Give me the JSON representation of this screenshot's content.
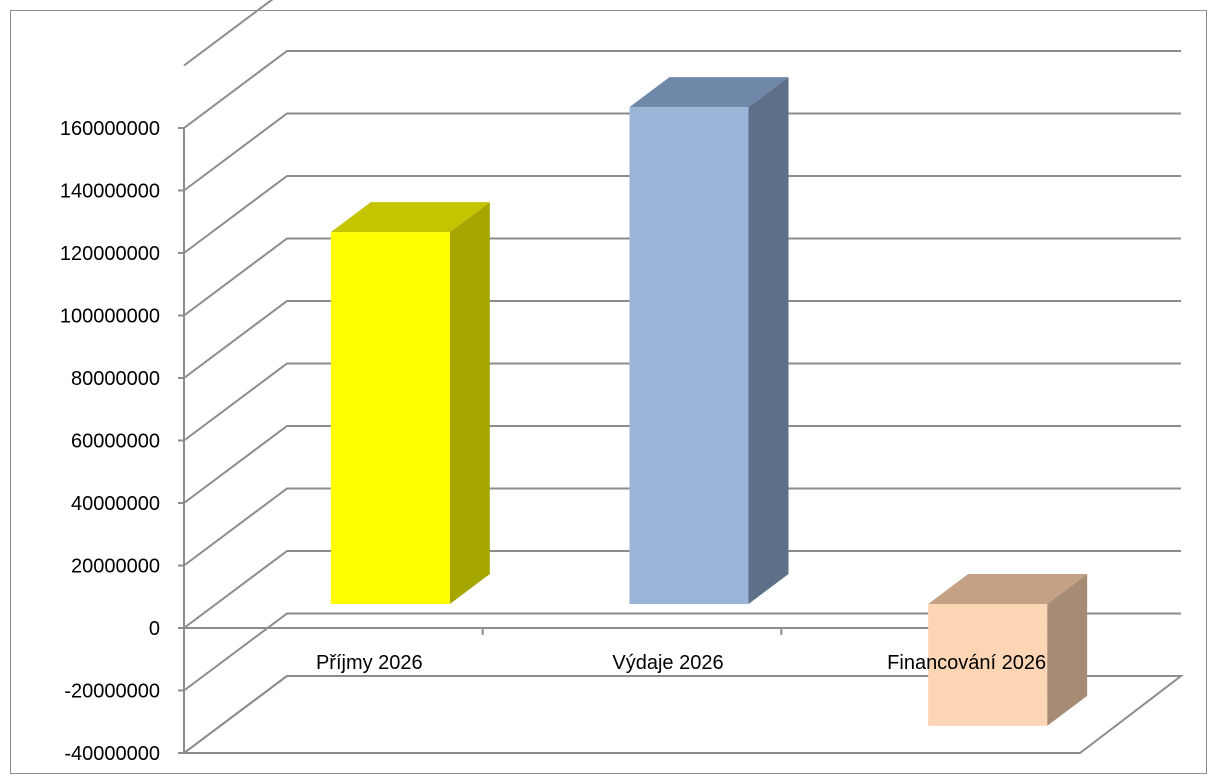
{
  "chart_data": {
    "type": "bar",
    "style": "3d-column",
    "categories": [
      "Příjmy 2026",
      "Výdaje 2026",
      "Financování 2026"
    ],
    "values": [
      119000000,
      159000000,
      -39000000
    ],
    "ylim": [
      -40000000,
      160000000
    ],
    "yticks": [
      "160000000",
      "140000000",
      "120000000",
      "100000000",
      "80000000",
      "60000000",
      "40000000",
      "20000000",
      "0",
      "-20000000",
      "-40000000"
    ],
    "ytick_values": [
      160000000,
      140000000,
      120000000,
      100000000,
      80000000,
      60000000,
      40000000,
      20000000,
      0,
      -20000000,
      -40000000
    ],
    "grid": true,
    "legend": "none",
    "colors": {
      "front": [
        "#ffff00",
        "#9bb4d8",
        "#fcd5b4"
      ],
      "top": [
        "#c4c400",
        "#6f87a8",
        "#c4a084"
      ],
      "side": [
        "#a6a600",
        "#5d7088",
        "#a68c74"
      ],
      "grid": "#8c8c8c"
    }
  }
}
